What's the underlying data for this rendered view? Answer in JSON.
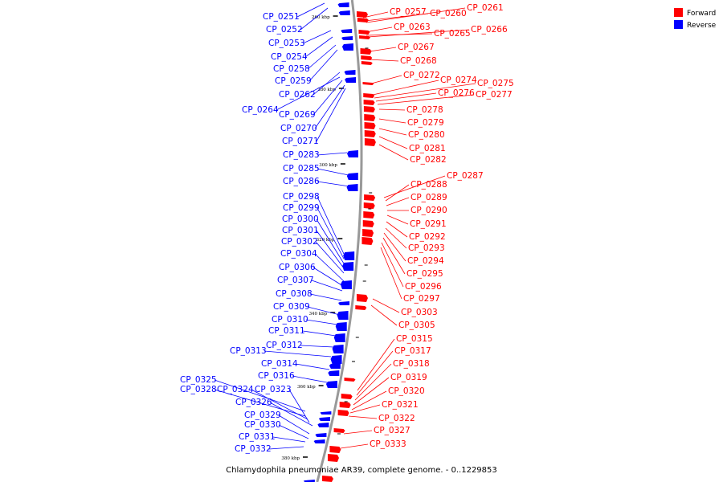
{
  "legend": {
    "items": [
      {
        "label": "Forward",
        "color": "#ff0000"
      },
      {
        "label": "Reverse",
        "color": "#0000ff"
      }
    ]
  },
  "caption": "Chlamydophila pneumoniae AR39, complete genome. - 0..1229853",
  "colors": {
    "forward": "#ff0000",
    "reverse": "#0000ff",
    "backbone": "#999999"
  },
  "ticks": [
    "260 kbp",
    "280 kbp",
    "300 kbp",
    "320 kbp",
    "340 kbp",
    "360 kbp",
    "380 kbp"
  ],
  "reverse_labels": [
    "CP_0251",
    "CP_0252",
    "CP_0253",
    "CP_0254",
    "CP_0258",
    "CP_0259",
    "CP_0262",
    "CP_0264",
    "CP_0269",
    "CP_0270",
    "CP_0271",
    "CP_0283",
    "CP_0285",
    "CP_0286",
    "CP_0298",
    "CP_0299",
    "CP_0300",
    "CP_0301",
    "CP_0302",
    "CP_0304",
    "CP_0306",
    "CP_0307",
    "CP_0308",
    "CP_0309",
    "CP_0310",
    "CP_0311",
    "CP_0312",
    "CP_0313",
    "CP_0314",
    "CP_0316",
    "CP_0325",
    "CP_0328",
    "CP_0324",
    "CP_0323",
    "CP_0326",
    "CP_0329",
    "CP_0330",
    "CP_0331",
    "CP_0332"
  ],
  "forward_labels": [
    "CP_0257",
    "CP_0260",
    "CP_0261",
    "CP_0263",
    "CP_0265",
    "CP_0266",
    "CP_0267",
    "CP_0268",
    "CP_0272",
    "CP_0274",
    "CP_0275",
    "CP_0276",
    "CP_0277",
    "CP_0278",
    "CP_0279",
    "CP_0280",
    "CP_0281",
    "CP_0282",
    "CP_0287",
    "CP_0288",
    "CP_0289",
    "CP_0290",
    "CP_0291",
    "CP_0292",
    "CP_0293",
    "CP_0294",
    "CP_0295",
    "CP_0296",
    "CP_0297",
    "CP_0303",
    "CP_0305",
    "CP_0315",
    "CP_0317",
    "CP_0318",
    "CP_0319",
    "CP_0320",
    "CP_0321",
    "CP_0322",
    "CP_0327",
    "CP_0333"
  ]
}
